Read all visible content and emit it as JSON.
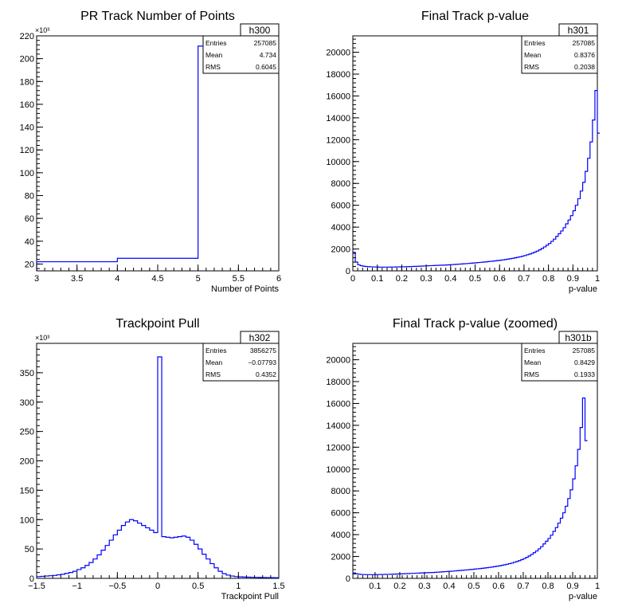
{
  "chart_data": [
    {
      "id": "h300",
      "type": "histogram",
      "title": "PR Track Number of Points",
      "xlabel": "Number of Points",
      "ylabel": "",
      "xlim": [
        3,
        6
      ],
      "ylim": [
        14000,
        220000
      ],
      "exponent_label": "×10³",
      "x_ticks": [
        "3",
        "3.5",
        "4",
        "4.5",
        "5",
        "5.5",
        "6"
      ],
      "x_tick_values": [
        3,
        3.5,
        4,
        4.5,
        5,
        5.5,
        6
      ],
      "y_ticks": [
        "20",
        "40",
        "60",
        "80",
        "100",
        "120",
        "140",
        "160",
        "180",
        "200",
        "220"
      ],
      "y_tick_values": [
        20000,
        40000,
        60000,
        80000,
        100000,
        120000,
        140000,
        160000,
        180000,
        200000,
        220000
      ],
      "bins": {
        "edges": [
          3,
          4,
          5,
          6
        ],
        "values": [
          22000,
          25000,
          211000
        ]
      },
      "stats": {
        "name": "h300",
        "rows": [
          [
            "Entries",
            "257085"
          ],
          [
            "Mean",
            "4.734"
          ],
          [
            "RMS",
            "0.6045"
          ]
        ]
      }
    },
    {
      "id": "h301",
      "type": "histogram",
      "title": "Final Track p-value",
      "xlabel": "p-value",
      "ylabel": "",
      "xlim": [
        0,
        1
      ],
      "ylim": [
        0,
        21500
      ],
      "x_ticks": [
        "0",
        "0.1",
        "0.2",
        "0.3",
        "0.4",
        "0.5",
        "0.6",
        "0.7",
        "0.8",
        "0.9",
        "1"
      ],
      "x_tick_values": [
        0,
        0.1,
        0.2,
        0.3,
        0.4,
        0.5,
        0.6,
        0.7,
        0.8,
        0.9,
        1
      ],
      "y_ticks": [
        "0",
        "2000",
        "4000",
        "6000",
        "8000",
        "10000",
        "12000",
        "14000",
        "16000",
        "18000",
        "20000"
      ],
      "y_tick_values": [
        0,
        2000,
        4000,
        6000,
        8000,
        10000,
        12000,
        14000,
        16000,
        18000,
        20000
      ],
      "bins": {
        "start": 0,
        "width": 0.01,
        "values": [
          1700,
          800,
          550,
          470,
          430,
          400,
          380,
          370,
          360,
          350,
          345,
          340,
          340,
          340,
          340,
          345,
          350,
          355,
          360,
          365,
          370,
          375,
          380,
          390,
          400,
          410,
          420,
          430,
          440,
          450,
          460,
          470,
          480,
          490,
          500,
          510,
          520,
          530,
          540,
          555,
          570,
          585,
          600,
          615,
          630,
          645,
          660,
          680,
          700,
          720,
          740,
          760,
          780,
          800,
          820,
          845,
          870,
          895,
          920,
          945,
          975,
          1005,
          1040,
          1075,
          1110,
          1150,
          1195,
          1240,
          1290,
          1345,
          1400,
          1470,
          1540,
          1620,
          1710,
          1810,
          1920,
          2050,
          2190,
          2350,
          2500,
          2700,
          2900,
          3150,
          3400,
          3650,
          3950,
          4300,
          4650,
          5050,
          5500,
          6000,
          6600,
          7300,
          8100,
          9100,
          10300,
          11800,
          13800,
          16500,
          12600
        ]
      },
      "stats": {
        "name": "h301",
        "rows": [
          [
            "Entries",
            "257085"
          ],
          [
            "Mean",
            "0.8376"
          ],
          [
            "RMS",
            "0.2038"
          ]
        ]
      }
    },
    {
      "id": "h302",
      "type": "histogram",
      "title": "Trackpoint Pull",
      "xlabel": "Trackpoint Pull",
      "ylabel": "",
      "xlim": [
        -1.5,
        1.5
      ],
      "ylim": [
        0,
        400000
      ],
      "exponent_label": "×10³",
      "x_ticks": [
        "−1.5",
        "−1",
        "−0.5",
        "0",
        "0.5",
        "1",
        "1.5"
      ],
      "x_tick_values": [
        -1.5,
        -1,
        -0.5,
        0,
        0.5,
        1,
        1.5
      ],
      "y_ticks": [
        "0",
        "50",
        "100",
        "150",
        "200",
        "250",
        "300",
        "350"
      ],
      "y_tick_values": [
        0,
        50000,
        100000,
        150000,
        200000,
        250000,
        300000,
        350000
      ],
      "bins": {
        "start": -1.5,
        "width": 0.05,
        "values": [
          3000,
          3500,
          4000,
          4500,
          5000,
          6000,
          7000,
          8500,
          10000,
          12000,
          15000,
          18000,
          22000,
          27000,
          33000,
          40000,
          48000,
          56000,
          65000,
          74000,
          82000,
          90000,
          96000,
          100000,
          98000,
          94000,
          90000,
          86000,
          82000,
          78000,
          377000,
          71000,
          70000,
          69000,
          70000,
          71000,
          72000,
          70000,
          65000,
          58000,
          50000,
          41000,
          33000,
          25000,
          18000,
          12000,
          8000,
          5500,
          4000,
          3000,
          2500,
          2200,
          2000,
          1800,
          1600,
          1500,
          1400,
          1300,
          1200,
          1100
        ]
      },
      "stats": {
        "name": "h302",
        "rows": [
          [
            "Entries",
            "3856275"
          ],
          [
            "Mean",
            "−0.07793"
          ],
          [
            "RMS",
            "0.4352"
          ]
        ]
      }
    },
    {
      "id": "h301b",
      "type": "histogram",
      "title": "Final Track p-value (zoomed)",
      "xlabel": "p-value",
      "ylabel": "",
      "xlim": [
        0.01,
        1.0
      ],
      "ylim": [
        0,
        21500
      ],
      "x_ticks": [
        "0.1",
        "0.2",
        "0.3",
        "0.4",
        "0.5",
        "0.6",
        "0.7",
        "0.8",
        "0.9",
        "1"
      ],
      "x_tick_values": [
        0.1,
        0.2,
        0.3,
        0.4,
        0.5,
        0.6,
        0.7,
        0.8,
        0.9,
        1
      ],
      "y_ticks": [
        "0",
        "2000",
        "4000",
        "6000",
        "8000",
        "10000",
        "12000",
        "14000",
        "16000",
        "18000",
        "20000"
      ],
      "y_tick_values": [
        0,
        2000,
        4000,
        6000,
        8000,
        10000,
        12000,
        14000,
        16000,
        18000,
        20000
      ],
      "bins": {
        "start": 0.01,
        "width": 0.01,
        "values": [
          500,
          420,
          380,
          360,
          350,
          340,
          340,
          340,
          340,
          345,
          350,
          355,
          360,
          365,
          370,
          375,
          380,
          390,
          400,
          410,
          420,
          430,
          440,
          450,
          460,
          470,
          480,
          490,
          500,
          510,
          520,
          530,
          540,
          555,
          570,
          585,
          600,
          615,
          630,
          645,
          660,
          680,
          700,
          720,
          740,
          760,
          780,
          800,
          820,
          845,
          870,
          895,
          920,
          945,
          975,
          1005,
          1040,
          1075,
          1110,
          1150,
          1195,
          1240,
          1290,
          1345,
          1400,
          1470,
          1540,
          1620,
          1710,
          1810,
          1920,
          2050,
          2190,
          2350,
          2500,
          2700,
          2900,
          3150,
          3400,
          3650,
          3950,
          4300,
          4650,
          5050,
          5500,
          6000,
          6600,
          7300,
          8100,
          9100,
          10300,
          11800,
          13800,
          16500,
          12600
        ]
      },
      "stats": {
        "name": "h301b",
        "rows": [
          [
            "Entries",
            "257085"
          ],
          [
            "Mean",
            "0.8429"
          ],
          [
            "RMS",
            "0.1933"
          ]
        ]
      }
    }
  ],
  "colors": {
    "line": "#0000ff",
    "axis": "#000000",
    "background": "#ffffff"
  }
}
